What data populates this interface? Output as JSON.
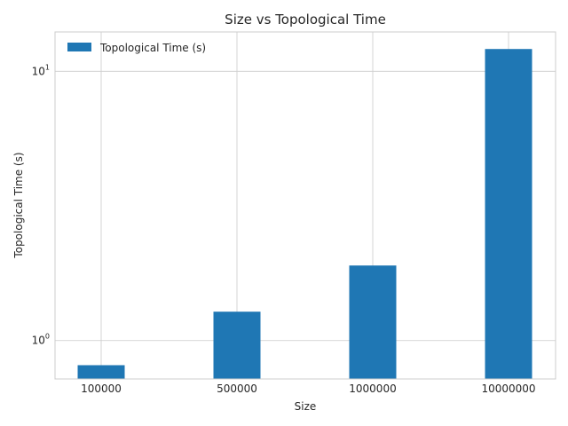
{
  "chart_data": {
    "type": "bar",
    "title": "Size vs Topological Time",
    "xlabel": "Size",
    "ylabel": "Topological Time (s)",
    "categories": [
      "100000",
      "500000",
      "1000000",
      "10000000"
    ],
    "series": [
      {
        "name": "Topological Time (s)",
        "values": [
          0.81,
          1.28,
          1.9,
          12.1
        ]
      }
    ],
    "yscale": "log",
    "ylim": [
      0.72,
      14
    ],
    "yticks": [
      {
        "value": 1,
        "base": "10",
        "exp": "0"
      },
      {
        "value": 10,
        "base": "10",
        "exp": "1"
      }
    ],
    "grid": true,
    "legend_position": "top-left",
    "bar_color": "#1f77b4"
  }
}
